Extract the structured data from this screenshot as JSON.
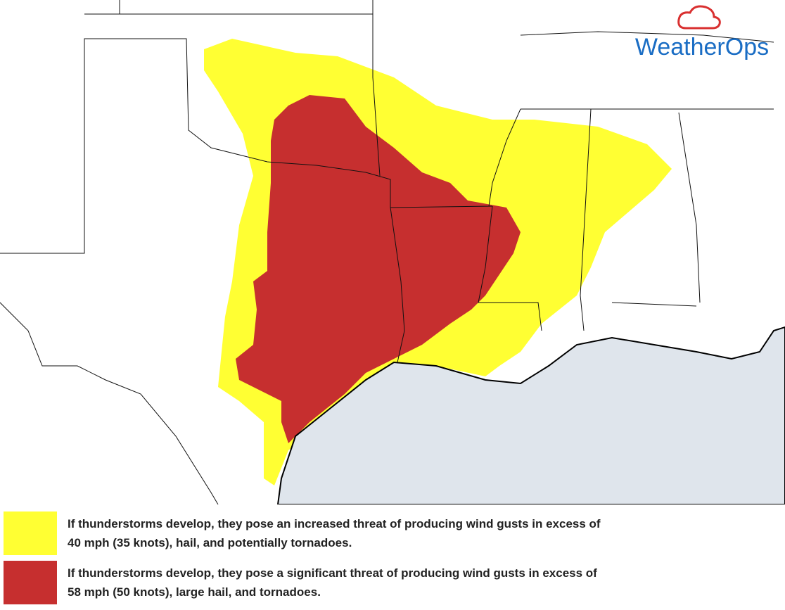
{
  "logo": {
    "text": "WeatherOps"
  },
  "legend": [
    {
      "color": "#ffff33",
      "lines": [
        "If thunderstorms develop, they pose an increased threat of producing wind gusts in excess of",
        "40 mph (35 knots), hail, and potentially tornadoes."
      ]
    },
    {
      "color": "#c62f2f",
      "lines": [
        "If thunderstorms develop, they pose a significant threat of producing wind gusts in excess of",
        "58 mph (50 knots), large hail, and tornadoes."
      ]
    }
  ]
}
